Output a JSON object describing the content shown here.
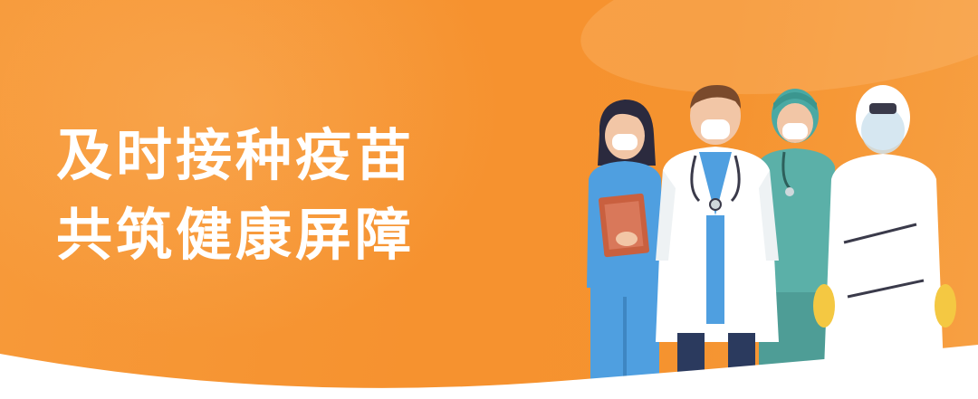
{
  "banner": {
    "headline_line1": "及时接种疫苗",
    "headline_line2": "共筑健康屏障",
    "illustration": "medical-staff-group",
    "colors": {
      "background": "#f6922f",
      "text": "#ffffff",
      "scrub_blue": "#4f9fe0",
      "scrub_teal": "#5bb0a8",
      "coat_white": "#ffffff",
      "glove_yellow": "#f4c842",
      "clipboard": "#c9603f"
    }
  }
}
